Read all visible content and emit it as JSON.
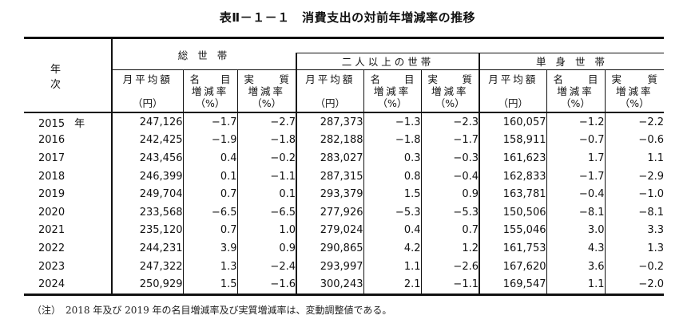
{
  "title": "表Ⅱ－１－１　消費支出の対前年増減率の推移",
  "header": {
    "year_label": "年 次",
    "groups": [
      {
        "label": "総 世 帯"
      },
      {
        "label": "二人以上の世帯"
      },
      {
        "label": "単 身 世 帯"
      }
    ],
    "sub": {
      "amount": {
        "line1": "月平均額",
        "unit": "（円）"
      },
      "nominal": {
        "a": "名",
        "b": "目",
        "line2": "増減率",
        "unit": "（%）"
      },
      "real": {
        "a": "実",
        "b": "質",
        "line2": "増減率",
        "unit": "（%）"
      }
    }
  },
  "year_suffix": "年",
  "rows": [
    {
      "year": "2015",
      "total": [
        "247,126",
        "−1.7",
        "−2.7"
      ],
      "two_plus": [
        "287,373",
        "−1.3",
        "−2.3"
      ],
      "single": [
        "160,057",
        "−1.2",
        "−2.2"
      ]
    },
    {
      "year": "2016",
      "total": [
        "242,425",
        "−1.9",
        "−1.8"
      ],
      "two_plus": [
        "282,188",
        "−1.8",
        "−1.7"
      ],
      "single": [
        "158,911",
        "−0.7",
        "−0.6"
      ]
    },
    {
      "year": "2017",
      "total": [
        "243,456",
        "0.4",
        "−0.2"
      ],
      "two_plus": [
        "283,027",
        "0.3",
        "−0.3"
      ],
      "single": [
        "161,623",
        "1.7",
        "1.1"
      ]
    },
    {
      "year": "2018",
      "total": [
        "246,399",
        "0.1",
        "−1.1"
      ],
      "two_plus": [
        "287,315",
        "0.8",
        "−0.4"
      ],
      "single": [
        "162,833",
        "−1.7",
        "−2.9"
      ]
    },
    {
      "year": "2019",
      "total": [
        "249,704",
        "0.7",
        "0.1"
      ],
      "two_plus": [
        "293,379",
        "1.5",
        "0.9"
      ],
      "single": [
        "163,781",
        "−0.4",
        "−1.0"
      ]
    },
    {
      "year": "2020",
      "total": [
        "233,568",
        "−6.5",
        "−6.5"
      ],
      "two_plus": [
        "277,926",
        "−5.3",
        "−5.3"
      ],
      "single": [
        "150,506",
        "−8.1",
        "−8.1"
      ]
    },
    {
      "year": "2021",
      "total": [
        "235,120",
        "0.7",
        "1.0"
      ],
      "two_plus": [
        "279,024",
        "0.4",
        "0.7"
      ],
      "single": [
        "155,046",
        "3.0",
        "3.3"
      ]
    },
    {
      "year": "2022",
      "total": [
        "244,231",
        "3.9",
        "0.9"
      ],
      "two_plus": [
        "290,865",
        "4.2",
        "1.2"
      ],
      "single": [
        "161,753",
        "4.3",
        "1.3"
      ]
    },
    {
      "year": "2023",
      "total": [
        "247,322",
        "1.3",
        "−2.4"
      ],
      "two_plus": [
        "293,997",
        "1.1",
        "−2.6"
      ],
      "single": [
        "167,620",
        "3.6",
        "−0.2"
      ]
    },
    {
      "year": "2024",
      "total": [
        "250,929",
        "1.5",
        "−1.6"
      ],
      "two_plus": [
        "300,243",
        "2.1",
        "−1.1"
      ],
      "single": [
        "169,547",
        "1.1",
        "−2.0"
      ]
    }
  ],
  "note": "（注）　2018 年及び 2019 年の名目増減率及び実質増減率は、変動調整値である。"
}
